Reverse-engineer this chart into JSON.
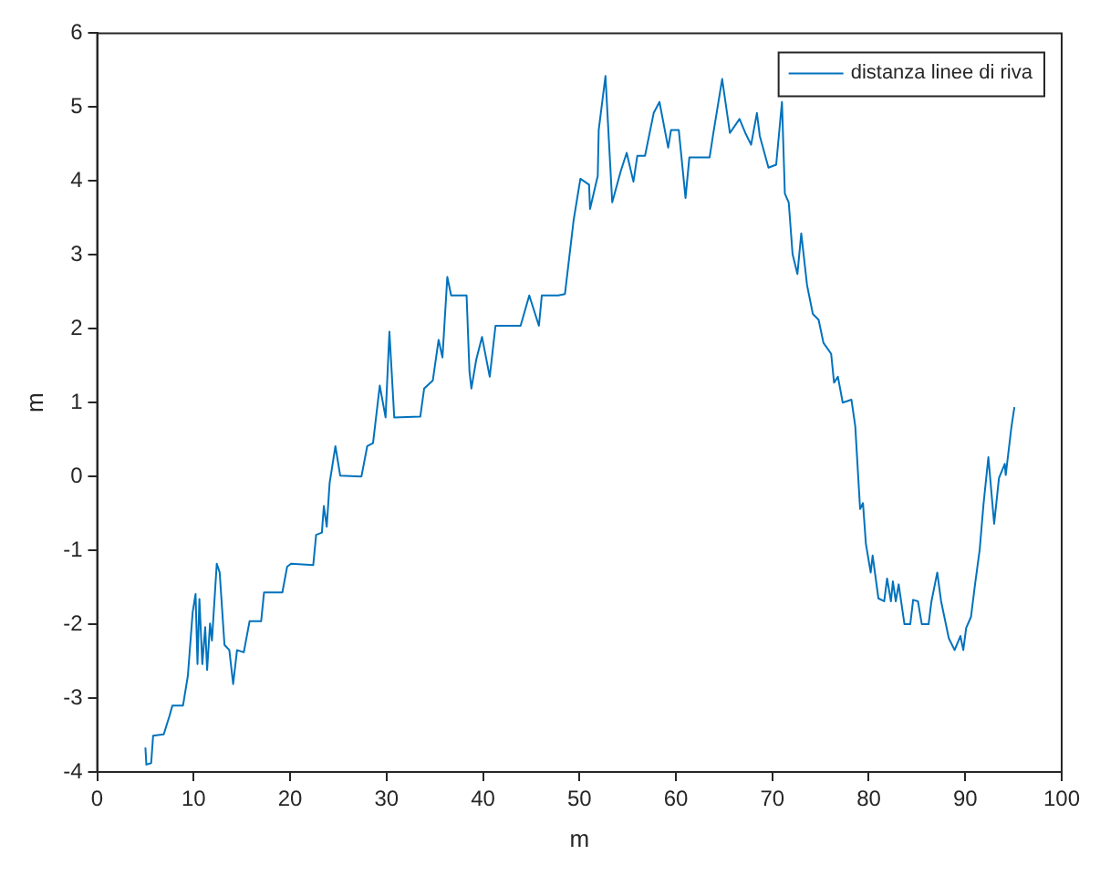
{
  "chart_data": {
    "type": "line",
    "xlabel": "m",
    "ylabel": "m",
    "xlim": [
      0,
      100
    ],
    "xticks": [
      0,
      10,
      20,
      30,
      40,
      50,
      60,
      70,
      80,
      90,
      100
    ],
    "ylim": [
      -4,
      6
    ],
    "yticks": [
      -4,
      -3,
      -2,
      -1,
      0,
      1,
      2,
      3,
      4,
      5,
      6
    ],
    "grid": false,
    "legend": "top right",
    "marker": "none",
    "line_style": "solid",
    "series": [
      {
        "name": "distanza linee di riva",
        "color": "#0072bd",
        "x": [
          5.0,
          5.1,
          5.6,
          5.8,
          6.9,
          7.5,
          7.8,
          8.9,
          9.4,
          9.9,
          10.2,
          10.4,
          10.6,
          10.9,
          11.2,
          11.4,
          11.7,
          11.9,
          12.4,
          12.7,
          13.2,
          13.7,
          14.1,
          14.5,
          15.2,
          15.8,
          17.0,
          17.3,
          19.2,
          19.7,
          20.1,
          22.4,
          22.7,
          23.3,
          23.5,
          23.8,
          24.1,
          24.7,
          25.2,
          27.4,
          28.0,
          28.6,
          29.3,
          29.9,
          30.3,
          30.8,
          33.5,
          33.9,
          34.8,
          35.4,
          35.8,
          36.3,
          36.7,
          38.3,
          38.6,
          38.8,
          39.3,
          39.9,
          40.7,
          41.3,
          43.9,
          44.8,
          45.8,
          46.1,
          47.8,
          48.5,
          49.4,
          50.1,
          51.0,
          51.1,
          51.9,
          52.0,
          52.7,
          53.4,
          54.3,
          54.9,
          55.6,
          56.0,
          56.8,
          57.7,
          58.3,
          59.2,
          59.5,
          60.3,
          61.0,
          61.4,
          63.5,
          63.9,
          64.8,
          65.6,
          66.6,
          67.2,
          67.8,
          68.4,
          68.7,
          69.6,
          70.4,
          71.0,
          71.3,
          71.7,
          72.1,
          72.6,
          73.0,
          73.6,
          74.2,
          74.8,
          75.3,
          76.1,
          76.4,
          76.8,
          77.3,
          78.2,
          78.6,
          79.1,
          79.4,
          79.7,
          80.2,
          80.4,
          81.0,
          81.6,
          81.9,
          82.3,
          82.5,
          82.8,
          83.1,
          83.7,
          84.3,
          84.6,
          85.1,
          85.5,
          86.2,
          86.5,
          87.1,
          87.5,
          88.3,
          88.9,
          89.5,
          89.8,
          90.1,
          90.6,
          91.0,
          91.5,
          91.9,
          92.4,
          93.0,
          93.5,
          94.1,
          94.2,
          94.8,
          95.1
        ],
        "values": [
          -3.67,
          -3.9,
          -3.88,
          -3.51,
          -3.49,
          -3.24,
          -3.1,
          -3.1,
          -2.7,
          -1.84,
          -1.59,
          -2.54,
          -1.66,
          -2.54,
          -2.04,
          -2.62,
          -1.99,
          -2.22,
          -1.18,
          -1.3,
          -2.28,
          -2.35,
          -2.81,
          -2.35,
          -2.38,
          -1.96,
          -1.96,
          -1.57,
          -1.57,
          -1.22,
          -1.18,
          -1.2,
          -0.79,
          -0.76,
          -0.4,
          -0.68,
          -0.09,
          0.41,
          0.01,
          0.0,
          0.41,
          0.45,
          1.23,
          0.8,
          1.96,
          0.8,
          0.81,
          1.19,
          1.3,
          1.85,
          1.61,
          2.7,
          2.45,
          2.45,
          1.42,
          1.19,
          1.58,
          1.89,
          1.35,
          2.04,
          2.04,
          2.45,
          2.04,
          2.45,
          2.45,
          2.47,
          3.47,
          4.03,
          3.95,
          3.62,
          4.07,
          4.69,
          5.42,
          3.71,
          4.14,
          4.38,
          3.99,
          4.34,
          4.34,
          4.92,
          5.07,
          4.45,
          4.69,
          4.69,
          3.77,
          4.32,
          4.32,
          4.66,
          5.38,
          4.65,
          4.84,
          4.65,
          4.49,
          4.92,
          4.61,
          4.18,
          4.22,
          5.07,
          3.83,
          3.71,
          3.01,
          2.74,
          3.29,
          2.59,
          2.2,
          2.12,
          1.81,
          1.66,
          1.27,
          1.35,
          1.0,
          1.04,
          0.68,
          -0.44,
          -0.36,
          -0.91,
          -1.3,
          -1.07,
          -1.65,
          -1.69,
          -1.38,
          -1.69,
          -1.42,
          -1.69,
          -1.46,
          -2.0,
          -2.0,
          -1.67,
          -1.69,
          -2.0,
          -2.0,
          -1.69,
          -1.3,
          -1.69,
          -2.19,
          -2.35,
          -2.16,
          -2.35,
          -2.05,
          -1.9,
          -1.48,
          -0.99,
          -0.37,
          0.26,
          -0.64,
          -0.02,
          0.17,
          0.02,
          0.68,
          0.94
        ]
      }
    ]
  }
}
